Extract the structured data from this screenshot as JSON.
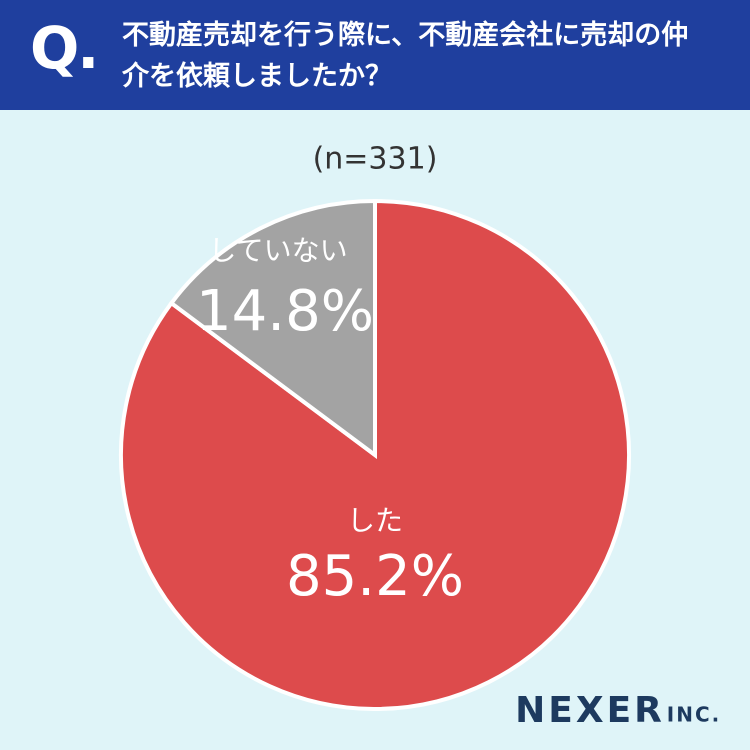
{
  "chart_data": {
    "type": "pie",
    "question_label": "Q.",
    "title": "不動産売却を行う際に、不動産会社に売却の仲介を依頼しましたか？",
    "subtitle": "(n=331)",
    "categories": [
      "した",
      "していない"
    ],
    "values": [
      85.2,
      14.8
    ],
    "value_labels": [
      "85.2%",
      "14.8%"
    ],
    "colors": [
      "#dd4b4c",
      "#a3a3a3"
    ],
    "brand": "NEXER",
    "brand_suffix": "INC."
  }
}
